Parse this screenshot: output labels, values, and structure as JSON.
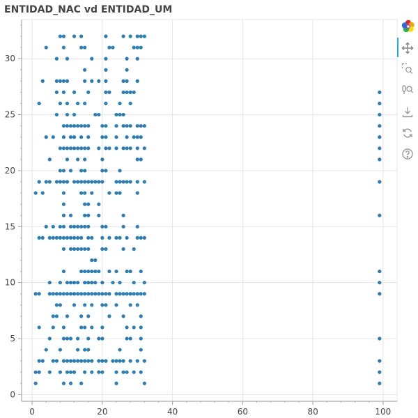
{
  "chart_data": {
    "type": "scatter",
    "title": "ENTIDAD_NAC vd ENTIDAD_UM",
    "xlabel": "",
    "ylabel": "",
    "xlim": [
      -3,
      104
    ],
    "ylim": [
      -0.6,
      33.5
    ],
    "x_ticks": [
      0,
      20,
      40,
      60,
      80,
      100
    ],
    "y_ticks": [
      0,
      5,
      10,
      15,
      20,
      25,
      30
    ],
    "grid": true,
    "marker_color": "#1f77b4",
    "points": [
      [
        8,
        32
      ],
      [
        9,
        32
      ],
      [
        12,
        32
      ],
      [
        14,
        32
      ],
      [
        21,
        32
      ],
      [
        26,
        32
      ],
      [
        28,
        32
      ],
      [
        30,
        32
      ],
      [
        31,
        32
      ],
      [
        32,
        32
      ],
      [
        4,
        31
      ],
      [
        9,
        31
      ],
      [
        14,
        31
      ],
      [
        15,
        31
      ],
      [
        22,
        31
      ],
      [
        23,
        31
      ],
      [
        29,
        31
      ],
      [
        30,
        31
      ],
      [
        31,
        31
      ],
      [
        7,
        30
      ],
      [
        10,
        30
      ],
      [
        17,
        30
      ],
      [
        21,
        30
      ],
      [
        27,
        30
      ],
      [
        30,
        30
      ],
      [
        15,
        29
      ],
      [
        21,
        29
      ],
      [
        27,
        29
      ],
      [
        3,
        28
      ],
      [
        7,
        28
      ],
      [
        8,
        28
      ],
      [
        9,
        28
      ],
      [
        10,
        28
      ],
      [
        15,
        28
      ],
      [
        17,
        28
      ],
      [
        19,
        28
      ],
      [
        21,
        28
      ],
      [
        26,
        28
      ],
      [
        27,
        28
      ],
      [
        30,
        28
      ],
      [
        7,
        27
      ],
      [
        9,
        27
      ],
      [
        12,
        27
      ],
      [
        16,
        27
      ],
      [
        21,
        27
      ],
      [
        22,
        27
      ],
      [
        26,
        27
      ],
      [
        27,
        27
      ],
      [
        28,
        27
      ],
      [
        29,
        27
      ],
      [
        99,
        27
      ],
      [
        2,
        26
      ],
      [
        8,
        26
      ],
      [
        10,
        26
      ],
      [
        13,
        26
      ],
      [
        15,
        26
      ],
      [
        21,
        26
      ],
      [
        25,
        26
      ],
      [
        28,
        26
      ],
      [
        99,
        26
      ],
      [
        7,
        25
      ],
      [
        10,
        25
      ],
      [
        12,
        25
      ],
      [
        18,
        25
      ],
      [
        19,
        25
      ],
      [
        24,
        25
      ],
      [
        25,
        25
      ],
      [
        26,
        25
      ],
      [
        99,
        25
      ],
      [
        9,
        24
      ],
      [
        10,
        24
      ],
      [
        11,
        24
      ],
      [
        12,
        24
      ],
      [
        13,
        24
      ],
      [
        14,
        24
      ],
      [
        15,
        24
      ],
      [
        16,
        24
      ],
      [
        20,
        24
      ],
      [
        21,
        24
      ],
      [
        24,
        24
      ],
      [
        26,
        24
      ],
      [
        27,
        24
      ],
      [
        28,
        24
      ],
      [
        30,
        24
      ],
      [
        31,
        24
      ],
      [
        32,
        24
      ],
      [
        99,
        24
      ],
      [
        4,
        23
      ],
      [
        6,
        23
      ],
      [
        9,
        23
      ],
      [
        11,
        23
      ],
      [
        12,
        23
      ],
      [
        14,
        23
      ],
      [
        16,
        23
      ],
      [
        20,
        23
      ],
      [
        21,
        23
      ],
      [
        24,
        23
      ],
      [
        27,
        23
      ],
      [
        29,
        23
      ],
      [
        30,
        23
      ],
      [
        31,
        23
      ],
      [
        99,
        23
      ],
      [
        8,
        22
      ],
      [
        9,
        22
      ],
      [
        10,
        22
      ],
      [
        11,
        22
      ],
      [
        12,
        22
      ],
      [
        13,
        22
      ],
      [
        14,
        22
      ],
      [
        15,
        22
      ],
      [
        16,
        22
      ],
      [
        19,
        22
      ],
      [
        21,
        22
      ],
      [
        22,
        22
      ],
      [
        24,
        22
      ],
      [
        26,
        22
      ],
      [
        27,
        22
      ],
      [
        28,
        22
      ],
      [
        30,
        22
      ],
      [
        32,
        22
      ],
      [
        99,
        22
      ],
      [
        5,
        21
      ],
      [
        10,
        21
      ],
      [
        13,
        21
      ],
      [
        15,
        21
      ],
      [
        20,
        21
      ],
      [
        30,
        21
      ],
      [
        31,
        21
      ],
      [
        99,
        21
      ],
      [
        8,
        20
      ],
      [
        9,
        20
      ],
      [
        11,
        20
      ],
      [
        14,
        20
      ],
      [
        15,
        20
      ],
      [
        20,
        20
      ],
      [
        21,
        20
      ],
      [
        25,
        20
      ],
      [
        2,
        19
      ],
      [
        4,
        19
      ],
      [
        5,
        19
      ],
      [
        7,
        19
      ],
      [
        8,
        19
      ],
      [
        9,
        19
      ],
      [
        10,
        19
      ],
      [
        12,
        19
      ],
      [
        13,
        19
      ],
      [
        14,
        19
      ],
      [
        15,
        19
      ],
      [
        16,
        19
      ],
      [
        17,
        19
      ],
      [
        18,
        19
      ],
      [
        19,
        19
      ],
      [
        20,
        19
      ],
      [
        24,
        19
      ],
      [
        25,
        19
      ],
      [
        26,
        19
      ],
      [
        27,
        19
      ],
      [
        28,
        19
      ],
      [
        30,
        19
      ],
      [
        32,
        19
      ],
      [
        99,
        19
      ],
      [
        1,
        18
      ],
      [
        3,
        18
      ],
      [
        9,
        18
      ],
      [
        14,
        18
      ],
      [
        15,
        18
      ],
      [
        17,
        18
      ],
      [
        22,
        18
      ],
      [
        24,
        18
      ],
      [
        25,
        18
      ],
      [
        30,
        18
      ],
      [
        9,
        17
      ],
      [
        15,
        17
      ],
      [
        16,
        17
      ],
      [
        19,
        17
      ],
      [
        9,
        16
      ],
      [
        11,
        16
      ],
      [
        15,
        16
      ],
      [
        16,
        16
      ],
      [
        19,
        16
      ],
      [
        26,
        16
      ],
      [
        99,
        16
      ],
      [
        4,
        15
      ],
      [
        6,
        15
      ],
      [
        8,
        15
      ],
      [
        9,
        15
      ],
      [
        11,
        15
      ],
      [
        12,
        15
      ],
      [
        13,
        15
      ],
      [
        14,
        15
      ],
      [
        15,
        15
      ],
      [
        16,
        15
      ],
      [
        20,
        15
      ],
      [
        21,
        15
      ],
      [
        26,
        15
      ],
      [
        30,
        15
      ],
      [
        2,
        14
      ],
      [
        3,
        14
      ],
      [
        5,
        14
      ],
      [
        6,
        14
      ],
      [
        7,
        14
      ],
      [
        8,
        14
      ],
      [
        9,
        14
      ],
      [
        10,
        14
      ],
      [
        11,
        14
      ],
      [
        12,
        14
      ],
      [
        13,
        14
      ],
      [
        14,
        14
      ],
      [
        16,
        14
      ],
      [
        17,
        14
      ],
      [
        20,
        14
      ],
      [
        22,
        14
      ],
      [
        24,
        14
      ],
      [
        25,
        14
      ],
      [
        27,
        14
      ],
      [
        30,
        14
      ],
      [
        31,
        14
      ],
      [
        32,
        14
      ],
      [
        9,
        13
      ],
      [
        11,
        13
      ],
      [
        12,
        13
      ],
      [
        13,
        13
      ],
      [
        14,
        13
      ],
      [
        15,
        13
      ],
      [
        16,
        13
      ],
      [
        20,
        13
      ],
      [
        21,
        13
      ],
      [
        26,
        13
      ],
      [
        29,
        13
      ],
      [
        17,
        12
      ],
      [
        18,
        12
      ],
      [
        9,
        11
      ],
      [
        14,
        11
      ],
      [
        15,
        11
      ],
      [
        16,
        11
      ],
      [
        17,
        11
      ],
      [
        18,
        11
      ],
      [
        19,
        11
      ],
      [
        22,
        11
      ],
      [
        24,
        11
      ],
      [
        27,
        11
      ],
      [
        28,
        11
      ],
      [
        31,
        11
      ],
      [
        99,
        11
      ],
      [
        5,
        10
      ],
      [
        8,
        10
      ],
      [
        10,
        10
      ],
      [
        11,
        10
      ],
      [
        12,
        10
      ],
      [
        13,
        10
      ],
      [
        15,
        10
      ],
      [
        16,
        10
      ],
      [
        17,
        10
      ],
      [
        18,
        10
      ],
      [
        20,
        10
      ],
      [
        23,
        10
      ],
      [
        25,
        10
      ],
      [
        29,
        10
      ],
      [
        32,
        10
      ],
      [
        99,
        10
      ],
      [
        1,
        9
      ],
      [
        2,
        9
      ],
      [
        5,
        9
      ],
      [
        6,
        9
      ],
      [
        7,
        9
      ],
      [
        8,
        9
      ],
      [
        9,
        9
      ],
      [
        10,
        9
      ],
      [
        11,
        9
      ],
      [
        12,
        9
      ],
      [
        13,
        9
      ],
      [
        14,
        9
      ],
      [
        15,
        9
      ],
      [
        16,
        9
      ],
      [
        17,
        9
      ],
      [
        18,
        9
      ],
      [
        19,
        9
      ],
      [
        20,
        9
      ],
      [
        21,
        9
      ],
      [
        22,
        9
      ],
      [
        24,
        9
      ],
      [
        25,
        9
      ],
      [
        26,
        9
      ],
      [
        27,
        9
      ],
      [
        28,
        9
      ],
      [
        29,
        9
      ],
      [
        30,
        9
      ],
      [
        31,
        9
      ],
      [
        32,
        9
      ],
      [
        99,
        9
      ],
      [
        7,
        8
      ],
      [
        8,
        8
      ],
      [
        12,
        8
      ],
      [
        15,
        8
      ],
      [
        17,
        8
      ],
      [
        20,
        8
      ],
      [
        21,
        8
      ],
      [
        24,
        8
      ],
      [
        28,
        8
      ],
      [
        30,
        8
      ],
      [
        6,
        7
      ],
      [
        7,
        7
      ],
      [
        10,
        7
      ],
      [
        14,
        7
      ],
      [
        16,
        7
      ],
      [
        22,
        7
      ],
      [
        26,
        7
      ],
      [
        31,
        7
      ],
      [
        2,
        6
      ],
      [
        6,
        6
      ],
      [
        9,
        6
      ],
      [
        14,
        6
      ],
      [
        15,
        6
      ],
      [
        17,
        6
      ],
      [
        20,
        6
      ],
      [
        27,
        6
      ],
      [
        29,
        6
      ],
      [
        31,
        6
      ],
      [
        5,
        5
      ],
      [
        9,
        5
      ],
      [
        10,
        5
      ],
      [
        11,
        5
      ],
      [
        13,
        5
      ],
      [
        16,
        5
      ],
      [
        19,
        5
      ],
      [
        20,
        5
      ],
      [
        27,
        5
      ],
      [
        28,
        5
      ],
      [
        31,
        5
      ],
      [
        99,
        5
      ],
      [
        4,
        4
      ],
      [
        8,
        4
      ],
      [
        13,
        4
      ],
      [
        15,
        4
      ],
      [
        16,
        4
      ],
      [
        25,
        4
      ],
      [
        31,
        4
      ],
      [
        2,
        3
      ],
      [
        3,
        3
      ],
      [
        6,
        3
      ],
      [
        7,
        3
      ],
      [
        9,
        3
      ],
      [
        10,
        3
      ],
      [
        11,
        3
      ],
      [
        12,
        3
      ],
      [
        13,
        3
      ],
      [
        14,
        3
      ],
      [
        15,
        3
      ],
      [
        16,
        3
      ],
      [
        17,
        3
      ],
      [
        19,
        3
      ],
      [
        20,
        3
      ],
      [
        21,
        3
      ],
      [
        23,
        3
      ],
      [
        24,
        3
      ],
      [
        25,
        3
      ],
      [
        26,
        3
      ],
      [
        28,
        3
      ],
      [
        30,
        3
      ],
      [
        32,
        3
      ],
      [
        99,
        3
      ],
      [
        1,
        2
      ],
      [
        2,
        2
      ],
      [
        5,
        2
      ],
      [
        8,
        2
      ],
      [
        10,
        2
      ],
      [
        11,
        2
      ],
      [
        12,
        2
      ],
      [
        15,
        2
      ],
      [
        17,
        2
      ],
      [
        19,
        2
      ],
      [
        20,
        2
      ],
      [
        24,
        2
      ],
      [
        26,
        2
      ],
      [
        27,
        2
      ],
      [
        29,
        2
      ],
      [
        31,
        2
      ],
      [
        99,
        2
      ],
      [
        1,
        1
      ],
      [
        9,
        1
      ],
      [
        11,
        1
      ],
      [
        14,
        1
      ],
      [
        24,
        1
      ],
      [
        32,
        1
      ],
      [
        99,
        1
      ]
    ]
  },
  "toolbar": {
    "items": [
      {
        "name": "bokeh-logo-icon",
        "interactable": false
      },
      {
        "name": "pan-tool-icon",
        "interactable": true
      },
      {
        "name": "box-zoom-tool-icon",
        "interactable": true
      },
      {
        "name": "wheel-zoom-tool-icon",
        "interactable": true
      },
      {
        "name": "save-tool-icon",
        "interactable": true
      },
      {
        "name": "reset-tool-icon",
        "interactable": true
      },
      {
        "name": "help-tool-icon",
        "interactable": true
      }
    ]
  }
}
